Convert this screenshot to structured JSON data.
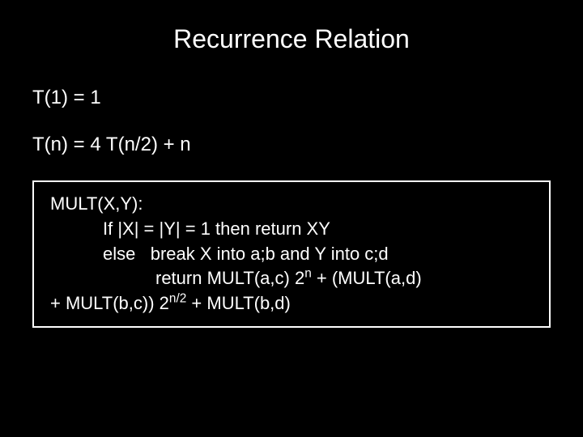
{
  "slide": {
    "title": "Recurrence Relation",
    "background_color": "#000000",
    "text_color": "#ffffff",
    "title_fontsize": 32,
    "body_fontsize": 24,
    "codebox_fontsize": 22,
    "border_color": "#ffffff",
    "border_width": 2
  },
  "equations": {
    "line1": "T(1) = 1",
    "line2": "T(n) = 4 T(n/2) + n"
  },
  "codebox": {
    "line1": "MULT(X,Y):",
    "line2": "If |X| = |Y| = 1 then return XY",
    "line3_a": "else",
    "line3_b": "break X into a;b and Y into c;d",
    "line4_a": "return MULT(a,c) 2",
    "line4_exp1": "n",
    "line4_b": " + (MULT(a,d)",
    "line5_a": "+ MULT(b,c)) 2",
    "line5_exp": "n/2",
    "line5_b": " + MULT(b,d)"
  }
}
